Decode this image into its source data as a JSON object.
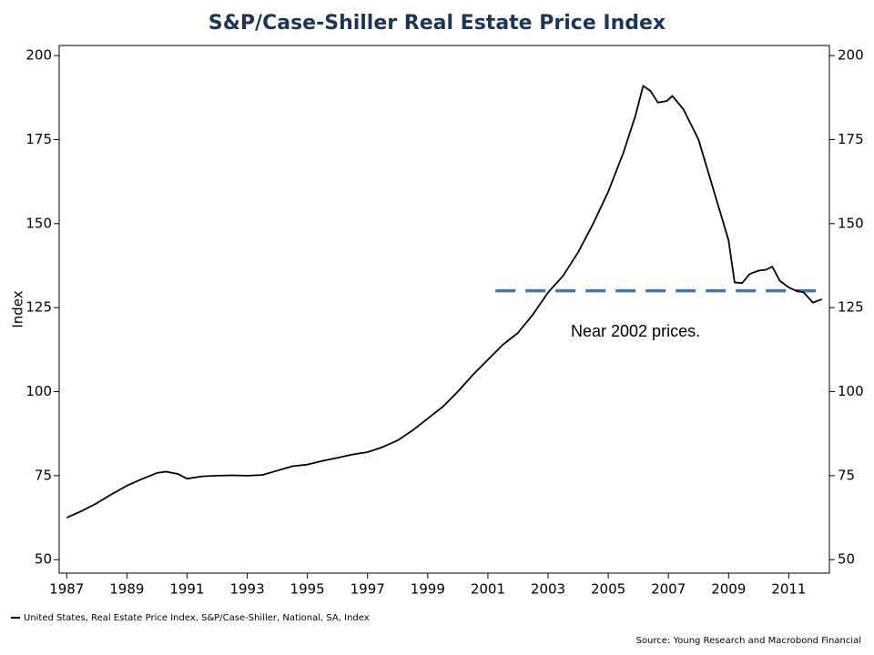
{
  "chart_data": {
    "type": "line",
    "title": "S&P/Case-Shiller Real Estate Price Index",
    "y_label": "Index",
    "legend": "United States, Real Estate Price Index, S&P/Case-Shiller, National, SA, Index",
    "source": "Source: Young Research and Macrobond Financial",
    "annotations": [
      "Near 2002 prices."
    ],
    "xlim": [
      1986.75,
      2012.35
    ],
    "xticks": [
      1987,
      1989,
      1991,
      1993,
      1995,
      1997,
      1999,
      2001,
      2003,
      2005,
      2007,
      2009,
      2011
    ],
    "ylim": [
      46,
      203
    ],
    "yticks": [
      50,
      75,
      100,
      125,
      150,
      175,
      200
    ],
    "y2lim": [
      46,
      203
    ],
    "y2ticks": [
      50,
      75,
      100,
      125,
      150,
      175,
      200
    ],
    "x": [
      1987.0,
      1987.5,
      1988.0,
      1988.5,
      1989.0,
      1989.5,
      1990.0,
      1990.3,
      1990.7,
      1991.0,
      1991.5,
      1992.0,
      1992.5,
      1993.0,
      1993.5,
      1994.0,
      1994.5,
      1995.0,
      1995.5,
      1996.0,
      1996.5,
      1997.0,
      1997.5,
      1998.0,
      1998.5,
      1999.0,
      1999.5,
      2000.0,
      2000.5,
      2001.0,
      2001.5,
      2002.0,
      2002.5,
      2003.0,
      2003.5,
      2004.0,
      2004.5,
      2005.0,
      2005.5,
      2005.9,
      2006.16,
      2006.4,
      2006.65,
      2006.95,
      2007.13,
      2007.5,
      2008.0,
      2008.5,
      2009.0,
      2009.2,
      2009.45,
      2009.7,
      2010.0,
      2010.25,
      2010.45,
      2010.7,
      2011.0,
      2011.25,
      2011.5,
      2011.8,
      2012.1
    ],
    "series": [
      {
        "name": "United States, Real Estate Price Index, S&P/Case-Shiller, National, SA, Index",
        "color": "#000000",
        "values": [
          62.5,
          64.5,
          66.8,
          69.5,
          72,
          74,
          75.8,
          76.2,
          75.5,
          74.1,
          74.8,
          75,
          75.1,
          75,
          75.2,
          76.5,
          77.8,
          78.3,
          79.4,
          80.3,
          81.3,
          82,
          83.5,
          85.5,
          88.5,
          92,
          95.5,
          100,
          105,
          109.5,
          114,
          117.5,
          123,
          129.5,
          134.5,
          141.5,
          150,
          159.5,
          171,
          182,
          191,
          189.5,
          186,
          186.5,
          188,
          184,
          175,
          160,
          145,
          132.5,
          132.3,
          135,
          136,
          136.3,
          137.2,
          133,
          131,
          130,
          129.5,
          126.5,
          127.5
        ]
      }
    ],
    "reference_line": {
      "value": 130,
      "x": [
        2001.25,
        2011.95
      ],
      "color": "#4a74aa"
    }
  }
}
